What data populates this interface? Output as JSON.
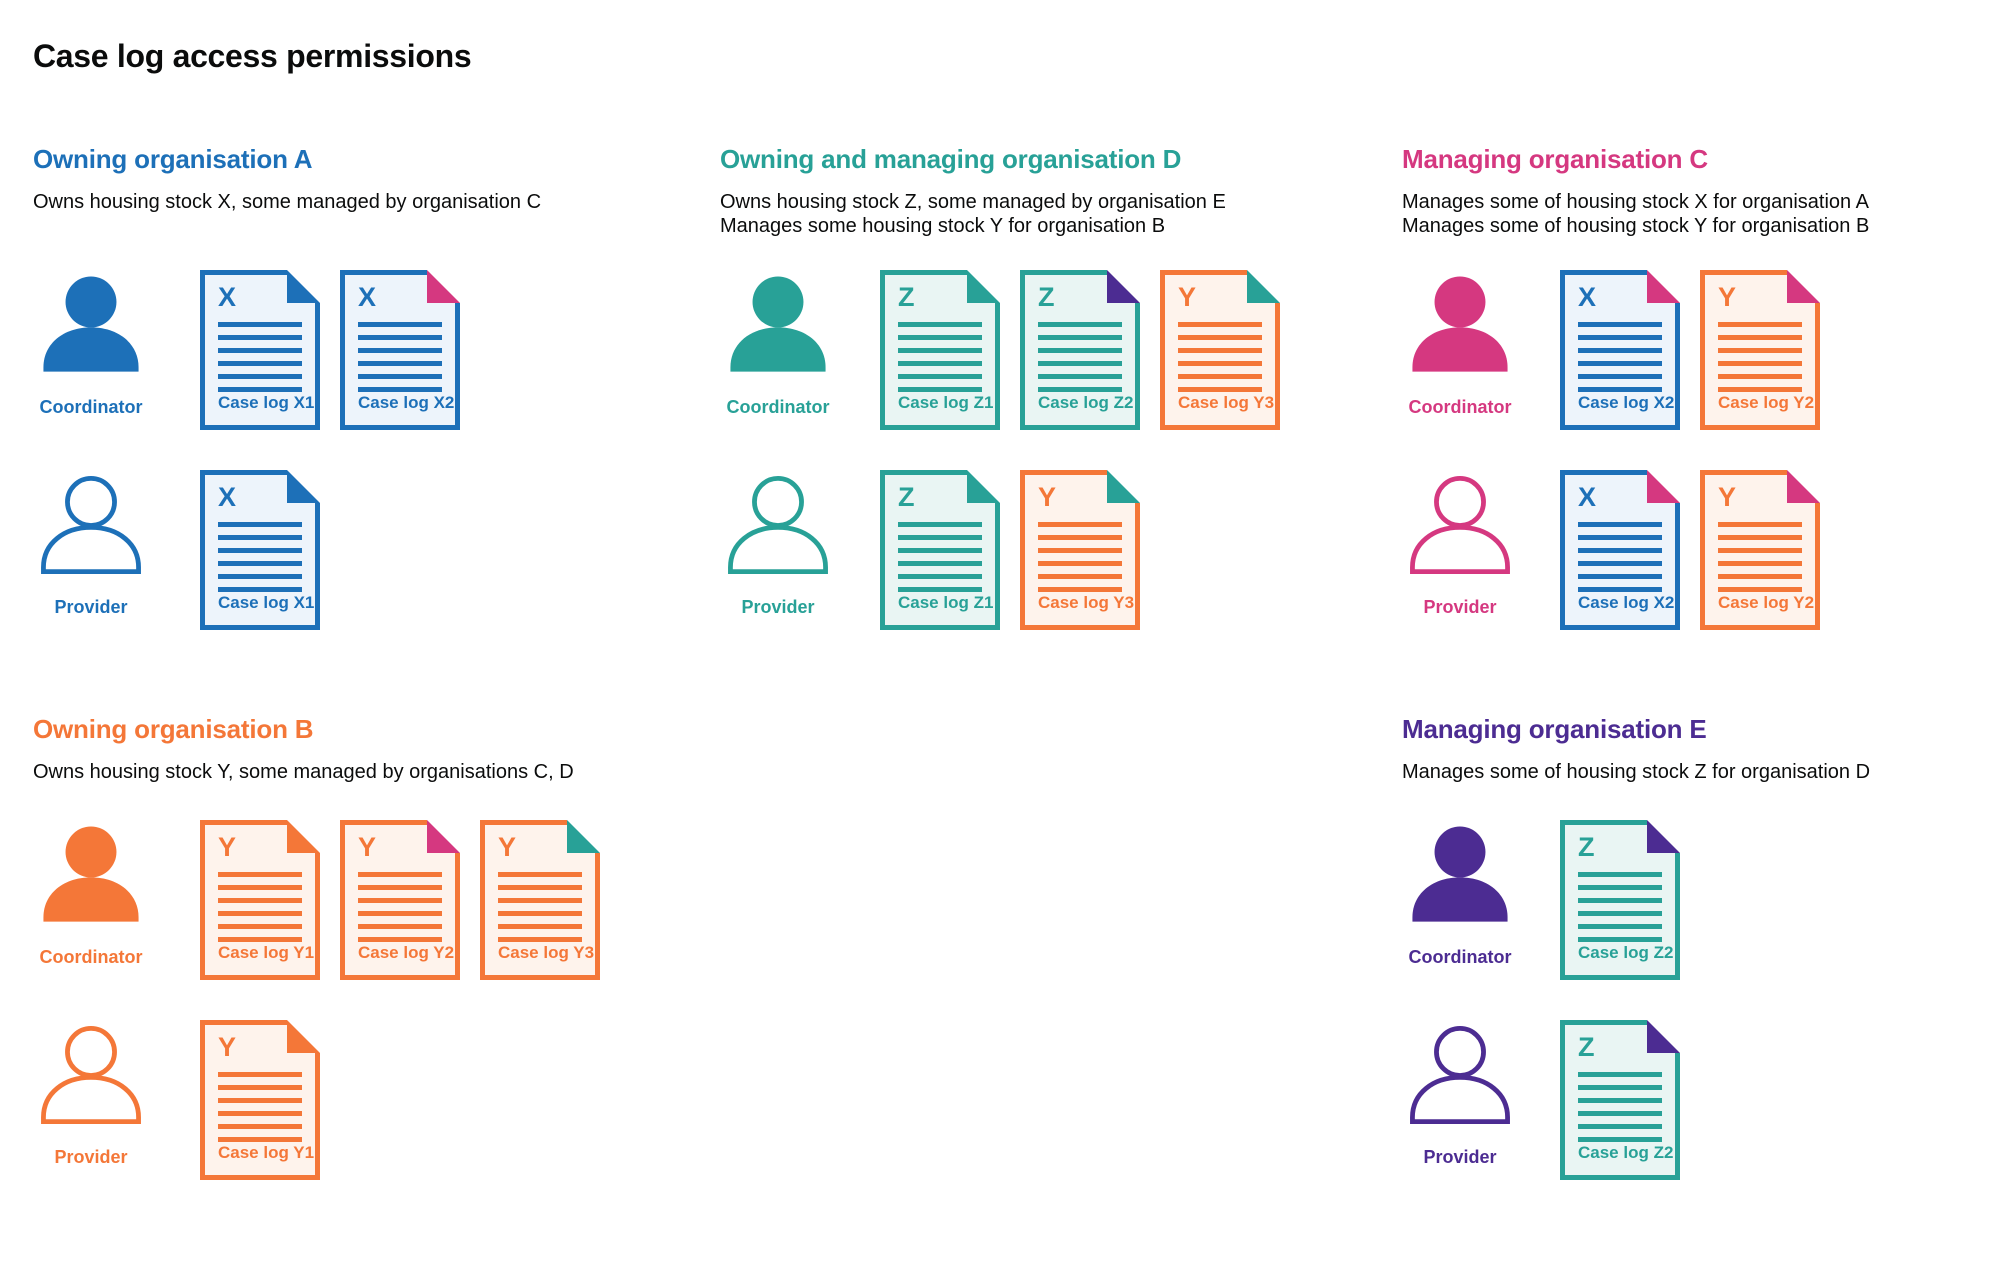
{
  "page_title": "Case log access permissions",
  "colors": {
    "palette": {
      "blue": "#1d70b8",
      "teal": "#28a197",
      "orange": "#f47738",
      "pink": "#d53880",
      "purple": "#4c2c92",
      "text": "#0b0c0c"
    },
    "doc_backgrounds": {
      "blue": "#edf4fb",
      "teal": "#e9f5f3",
      "orange": "#fef3ec"
    }
  },
  "sections": [
    {
      "id": "owning-organisation-a",
      "title": "Owning organisation A",
      "color": "blue",
      "column": 0,
      "band": 0,
      "description_lines": [
        "Owns housing stock X, some managed by organisation C"
      ],
      "rows": [
        {
          "role": "Coordinator",
          "person_style": "filled",
          "docs": [
            {
              "letter": "X",
              "label": "Case log X1",
              "doc_color": "blue",
              "fold_color": "blue"
            },
            {
              "letter": "X",
              "label": "Case log X2",
              "doc_color": "blue",
              "fold_color": "pink"
            }
          ]
        },
        {
          "role": "Provider",
          "person_style": "outline",
          "docs": [
            {
              "letter": "X",
              "label": "Case log X1",
              "doc_color": "blue",
              "fold_color": "blue"
            }
          ]
        }
      ]
    },
    {
      "id": "owning-and-managing-organisation-d",
      "title": "Owning and managing organisation D",
      "color": "teal",
      "column": 1,
      "band": 0,
      "description_lines": [
        "Owns housing stock Z, some managed by organisation E",
        "Manages some housing stock Y for organisation B"
      ],
      "rows": [
        {
          "role": "Coordinator",
          "person_style": "filled",
          "docs": [
            {
              "letter": "Z",
              "label": "Case log Z1",
              "doc_color": "teal",
              "fold_color": "teal"
            },
            {
              "letter": "Z",
              "label": "Case log Z2",
              "doc_color": "teal",
              "fold_color": "purple"
            },
            {
              "letter": "Y",
              "label": "Case log Y3",
              "doc_color": "orange",
              "fold_color": "teal"
            }
          ]
        },
        {
          "role": "Provider",
          "person_style": "outline",
          "docs": [
            {
              "letter": "Z",
              "label": "Case log Z1",
              "doc_color": "teal",
              "fold_color": "teal"
            },
            {
              "letter": "Y",
              "label": "Case log Y3",
              "doc_color": "orange",
              "fold_color": "teal"
            }
          ]
        }
      ]
    },
    {
      "id": "managing-organisation-c",
      "title": "Managing organisation C",
      "color": "pink",
      "column": 2,
      "band": 0,
      "description_lines": [
        "Manages some of housing stock X for organisation A",
        "Manages some of housing stock Y for organisation B"
      ],
      "rows": [
        {
          "role": "Coordinator",
          "person_style": "filled",
          "docs": [
            {
              "letter": "X",
              "label": "Case log X2",
              "doc_color": "blue",
              "fold_color": "pink"
            },
            {
              "letter": "Y",
              "label": "Case log Y2",
              "doc_color": "orange",
              "fold_color": "pink"
            }
          ]
        },
        {
          "role": "Provider",
          "person_style": "outline",
          "docs": [
            {
              "letter": "X",
              "label": "Case log X2",
              "doc_color": "blue",
              "fold_color": "pink"
            },
            {
              "letter": "Y",
              "label": "Case log Y2",
              "doc_color": "orange",
              "fold_color": "pink"
            }
          ]
        }
      ]
    },
    {
      "id": "owning-organisation-b",
      "title": "Owning organisation B",
      "color": "orange",
      "column": 0,
      "band": 1,
      "description_lines": [
        "Owns housing stock Y, some managed by organisations C, D"
      ],
      "rows": [
        {
          "role": "Coordinator",
          "person_style": "filled",
          "docs": [
            {
              "letter": "Y",
              "label": "Case log Y1",
              "doc_color": "orange",
              "fold_color": "orange"
            },
            {
              "letter": "Y",
              "label": "Case log Y2",
              "doc_color": "orange",
              "fold_color": "pink"
            },
            {
              "letter": "Y",
              "label": "Case log Y3",
              "doc_color": "orange",
              "fold_color": "teal"
            }
          ]
        },
        {
          "role": "Provider",
          "person_style": "outline",
          "docs": [
            {
              "letter": "Y",
              "label": "Case log Y1",
              "doc_color": "orange",
              "fold_color": "orange"
            }
          ]
        }
      ]
    },
    {
      "id": "managing-organisation-e",
      "title": "Managing organisation E",
      "color": "purple",
      "column": 2,
      "band": 1,
      "description_lines": [
        "Manages some of housing stock Z for organisation D"
      ],
      "rows": [
        {
          "role": "Coordinator",
          "person_style": "filled",
          "docs": [
            {
              "letter": "Z",
              "label": "Case log Z2",
              "doc_color": "teal",
              "fold_color": "purple"
            }
          ]
        },
        {
          "role": "Provider",
          "person_style": "outline",
          "docs": [
            {
              "letter": "Z",
              "label": "Case log Z2",
              "doc_color": "teal",
              "fold_color": "purple"
            }
          ]
        }
      ]
    }
  ]
}
